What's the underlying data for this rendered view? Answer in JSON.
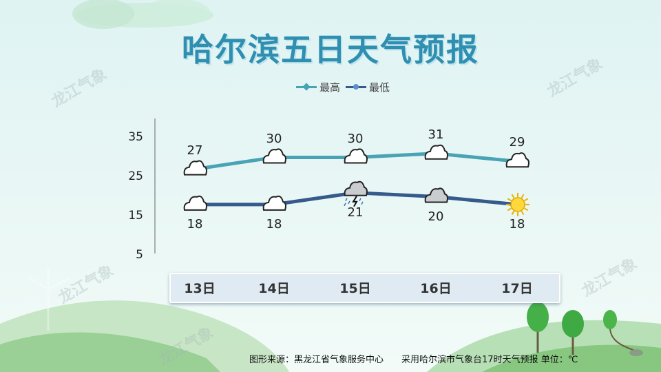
{
  "title": "哈尔滨五日天气预报",
  "watermark": "龙江气象",
  "legend": {
    "high": "最高",
    "low": "最低"
  },
  "colors": {
    "high": "#4aa3b4",
    "low": "#355a8b",
    "title": "#2f8fb0"
  },
  "icons": {
    "high": [
      "cloud-icon",
      "cloud-icon",
      "cloud-icon",
      "cloud-icon",
      "cloud-icon"
    ],
    "low": [
      "cloud-icon",
      "cloud-icon",
      "thunderstorm-icon",
      "overcast-cloud-icon",
      "sun-icon"
    ]
  },
  "chart_data": {
    "type": "line",
    "categories": [
      "13日",
      "14日",
      "15日",
      "16日",
      "17日"
    ],
    "series": [
      {
        "name": "最高",
        "values": [
          27,
          30,
          30,
          31,
          29
        ]
      },
      {
        "name": "最低",
        "values": [
          18,
          18,
          21,
          20,
          18
        ]
      }
    ],
    "yticks": [
      35,
      25,
      15,
      5
    ],
    "ylim": [
      5,
      35
    ],
    "grid": false,
    "legend_position": "top-center"
  },
  "footer": {
    "source": "图形来源：黑龙江省气象服务中心",
    "note": "采用哈尔滨市气象台17时天气预报 单位：℃"
  }
}
